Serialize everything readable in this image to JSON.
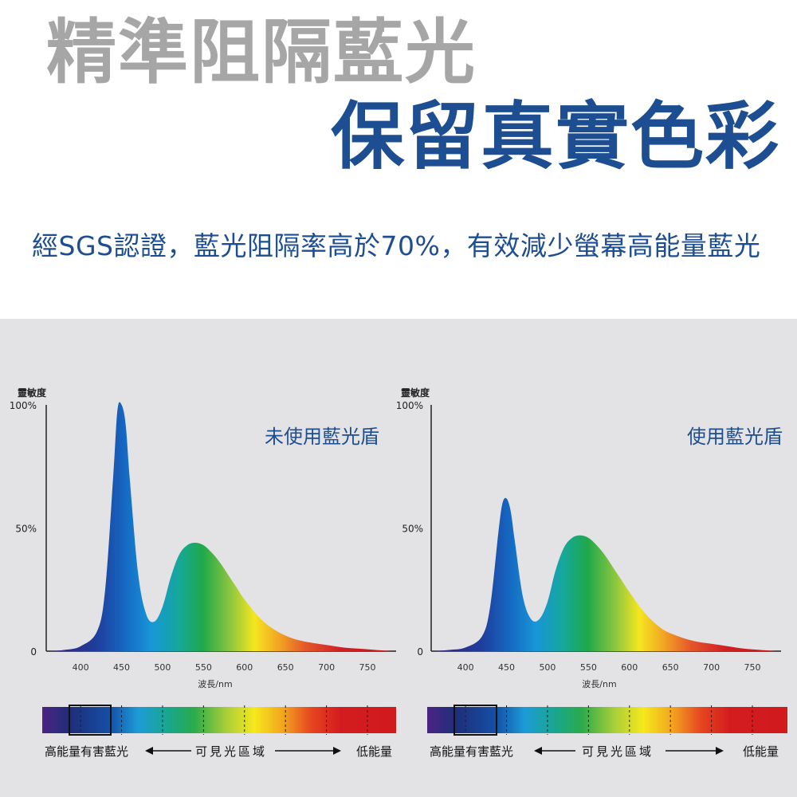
{
  "header": {
    "title_line1": "精準阻隔藍光",
    "title_line2": "保留真實色彩",
    "subtitle": "經SGS認證，藍光阻隔率高於70%，有效減少螢幕高能量藍光"
  },
  "colors": {
    "title_gray": "#a6a6a6",
    "brand_blue": "#1d4e91",
    "panel_bg": "#e3e3e6"
  },
  "chart_data": [
    {
      "type": "area",
      "title": "未使用藍光盾",
      "ylabel": "靈敏度",
      "xlabel": "波長/nm",
      "y_ticks": [
        "100%",
        "50%",
        "0"
      ],
      "x_ticks": [
        400,
        450,
        500,
        550,
        600,
        650,
        700,
        750
      ],
      "xlim": [
        360,
        785
      ],
      "ylim": [
        0,
        100
      ],
      "x": [
        360,
        380,
        400,
        420,
        430,
        440,
        445,
        450,
        455,
        460,
        470,
        480,
        490,
        500,
        510,
        520,
        530,
        540,
        550,
        560,
        570,
        580,
        590,
        600,
        620,
        640,
        660,
        680,
        700,
        720,
        740,
        760,
        780
      ],
      "values": [
        0,
        0.5,
        2,
        8,
        25,
        72,
        98,
        100,
        92,
        70,
        32,
        15,
        12,
        18,
        30,
        39,
        43,
        44,
        43,
        40,
        36,
        31,
        26,
        21,
        13,
        8,
        5,
        3.5,
        2.5,
        1.5,
        1,
        0.5,
        0
      ],
      "spectrum_bar": {
        "left_label": "高能量有害藍光",
        "center_label": "可見光區域",
        "right_label": "低能量"
      }
    },
    {
      "type": "area",
      "title": "使用藍光盾",
      "ylabel": "靈敏度",
      "xlabel": "波長/nm",
      "y_ticks": [
        "100%",
        "50%",
        "0"
      ],
      "x_ticks": [
        400,
        450,
        500,
        550,
        600,
        650,
        700,
        750
      ],
      "xlim": [
        360,
        785
      ],
      "ylim": [
        0,
        100
      ],
      "x": [
        360,
        380,
        400,
        420,
        430,
        440,
        445,
        450,
        455,
        460,
        470,
        480,
        490,
        500,
        510,
        520,
        530,
        540,
        550,
        560,
        570,
        580,
        590,
        600,
        620,
        640,
        660,
        680,
        700,
        720,
        740,
        760,
        780
      ],
      "values": [
        0,
        0.5,
        1.5,
        6,
        18,
        48,
        60,
        62,
        57,
        45,
        22,
        13,
        13,
        20,
        33,
        42,
        46,
        47,
        46,
        43,
        39,
        34,
        29,
        24,
        15,
        9,
        6,
        4,
        3,
        2,
        1,
        0.5,
        0
      ],
      "spectrum_bar": {
        "left_label": "高能量有害藍光",
        "center_label": "可見光區域",
        "right_label": "低能量"
      }
    }
  ]
}
